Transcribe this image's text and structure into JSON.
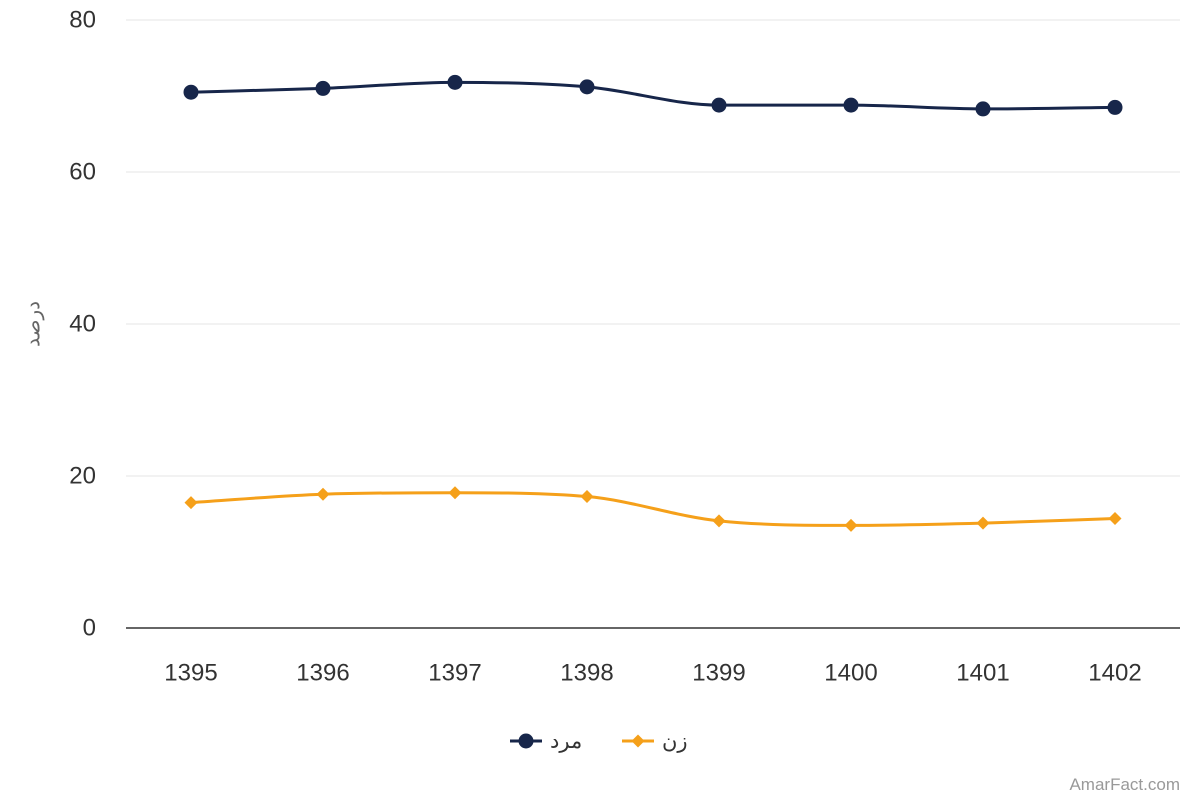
{
  "chart_data": {
    "type": "line",
    "categories": [
      "1395",
      "1396",
      "1397",
      "1398",
      "1399",
      "1400",
      "1401",
      "1402"
    ],
    "series": [
      {
        "name": "مرد",
        "color": "#17264a",
        "marker": "circle",
        "values": [
          70.5,
          71.0,
          71.8,
          71.2,
          68.8,
          68.8,
          68.3,
          68.5
        ]
      },
      {
        "name": "زن",
        "color": "#f5a01a",
        "marker": "diamond",
        "values": [
          16.5,
          17.6,
          17.8,
          17.3,
          14.1,
          13.5,
          13.8,
          14.4
        ]
      }
    ],
    "ylabel": "درصد",
    "xlabel": "",
    "title": "",
    "ylim": [
      0,
      80
    ],
    "yticks": [
      0,
      20,
      40,
      60,
      80
    ],
    "grid": true,
    "legend_position": "bottom-center",
    "smooth": true
  },
  "credit": "AmarFact.com"
}
